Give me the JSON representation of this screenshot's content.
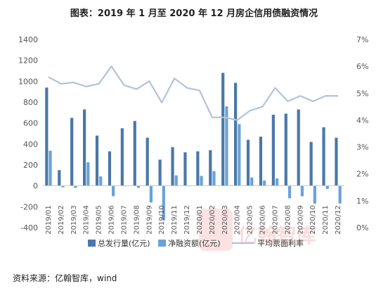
{
  "title": "图表：2019 年 1 月至 2020 年 12 月房企信用债融资情况",
  "source": "资料来源：亿翰智库，wind",
  "watermark": "亿翰智库",
  "colors": {
    "issuance": "#4a78a8",
    "net": "#6aa2d8",
    "rate": "#b2c3dd",
    "axis": "#c8c8c8",
    "text": "#555555"
  },
  "chart_data": {
    "type": "bar",
    "categories": [
      "2019/01",
      "2019/02",
      "2019/03",
      "2019/04",
      "2019/05",
      "2019/06",
      "2019/07",
      "2019/08",
      "2019/09",
      "2019/10",
      "2019/11",
      "2019/12",
      "2020/01",
      "2020/02",
      "2020/03",
      "2020/04",
      "2020/05",
      "2020/06",
      "2020/07",
      "2020/08",
      "2020/09",
      "2020/10",
      "2020/11",
      "2020/12"
    ],
    "y_left": {
      "ticks": [
        "1400",
        "1200",
        "1000",
        "800",
        "600",
        "400",
        "200",
        "0",
        "-200",
        "-400"
      ],
      "min": -400,
      "max": 1400
    },
    "y_right": {
      "ticks": [
        "7%",
        "6%",
        "5%",
        "4%",
        "3%",
        "2%",
        "1%",
        "0%"
      ],
      "min": 0,
      "max": 7
    },
    "series": [
      {
        "name": "总发行量(亿元)",
        "type": "bar",
        "axis": "left",
        "values": [
          940,
          150,
          650,
          730,
          480,
          330,
          550,
          620,
          460,
          250,
          370,
          320,
          330,
          340,
          1080,
          985,
          440,
          470,
          680,
          690,
          730,
          420,
          560,
          460
        ]
      },
      {
        "name": "净融资额(亿元)",
        "type": "bar",
        "axis": "left",
        "values": [
          335,
          -15,
          -20,
          225,
          90,
          -100,
          0,
          -20,
          -160,
          -330,
          100,
          0,
          95,
          140,
          760,
          590,
          80,
          50,
          70,
          -120,
          -100,
          -170,
          -30,
          -170
        ]
      },
      {
        "name": "平均票面利率",
        "type": "line",
        "axis": "right",
        "values": [
          5.6,
          5.35,
          5.4,
          5.25,
          5.35,
          6.0,
          5.3,
          5.15,
          5.45,
          4.65,
          5.55,
          5.2,
          5.1,
          4.1,
          4.1,
          4.0,
          4.35,
          4.5,
          5.2,
          4.7,
          4.9,
          4.7,
          4.9,
          4.9
        ]
      }
    ]
  }
}
